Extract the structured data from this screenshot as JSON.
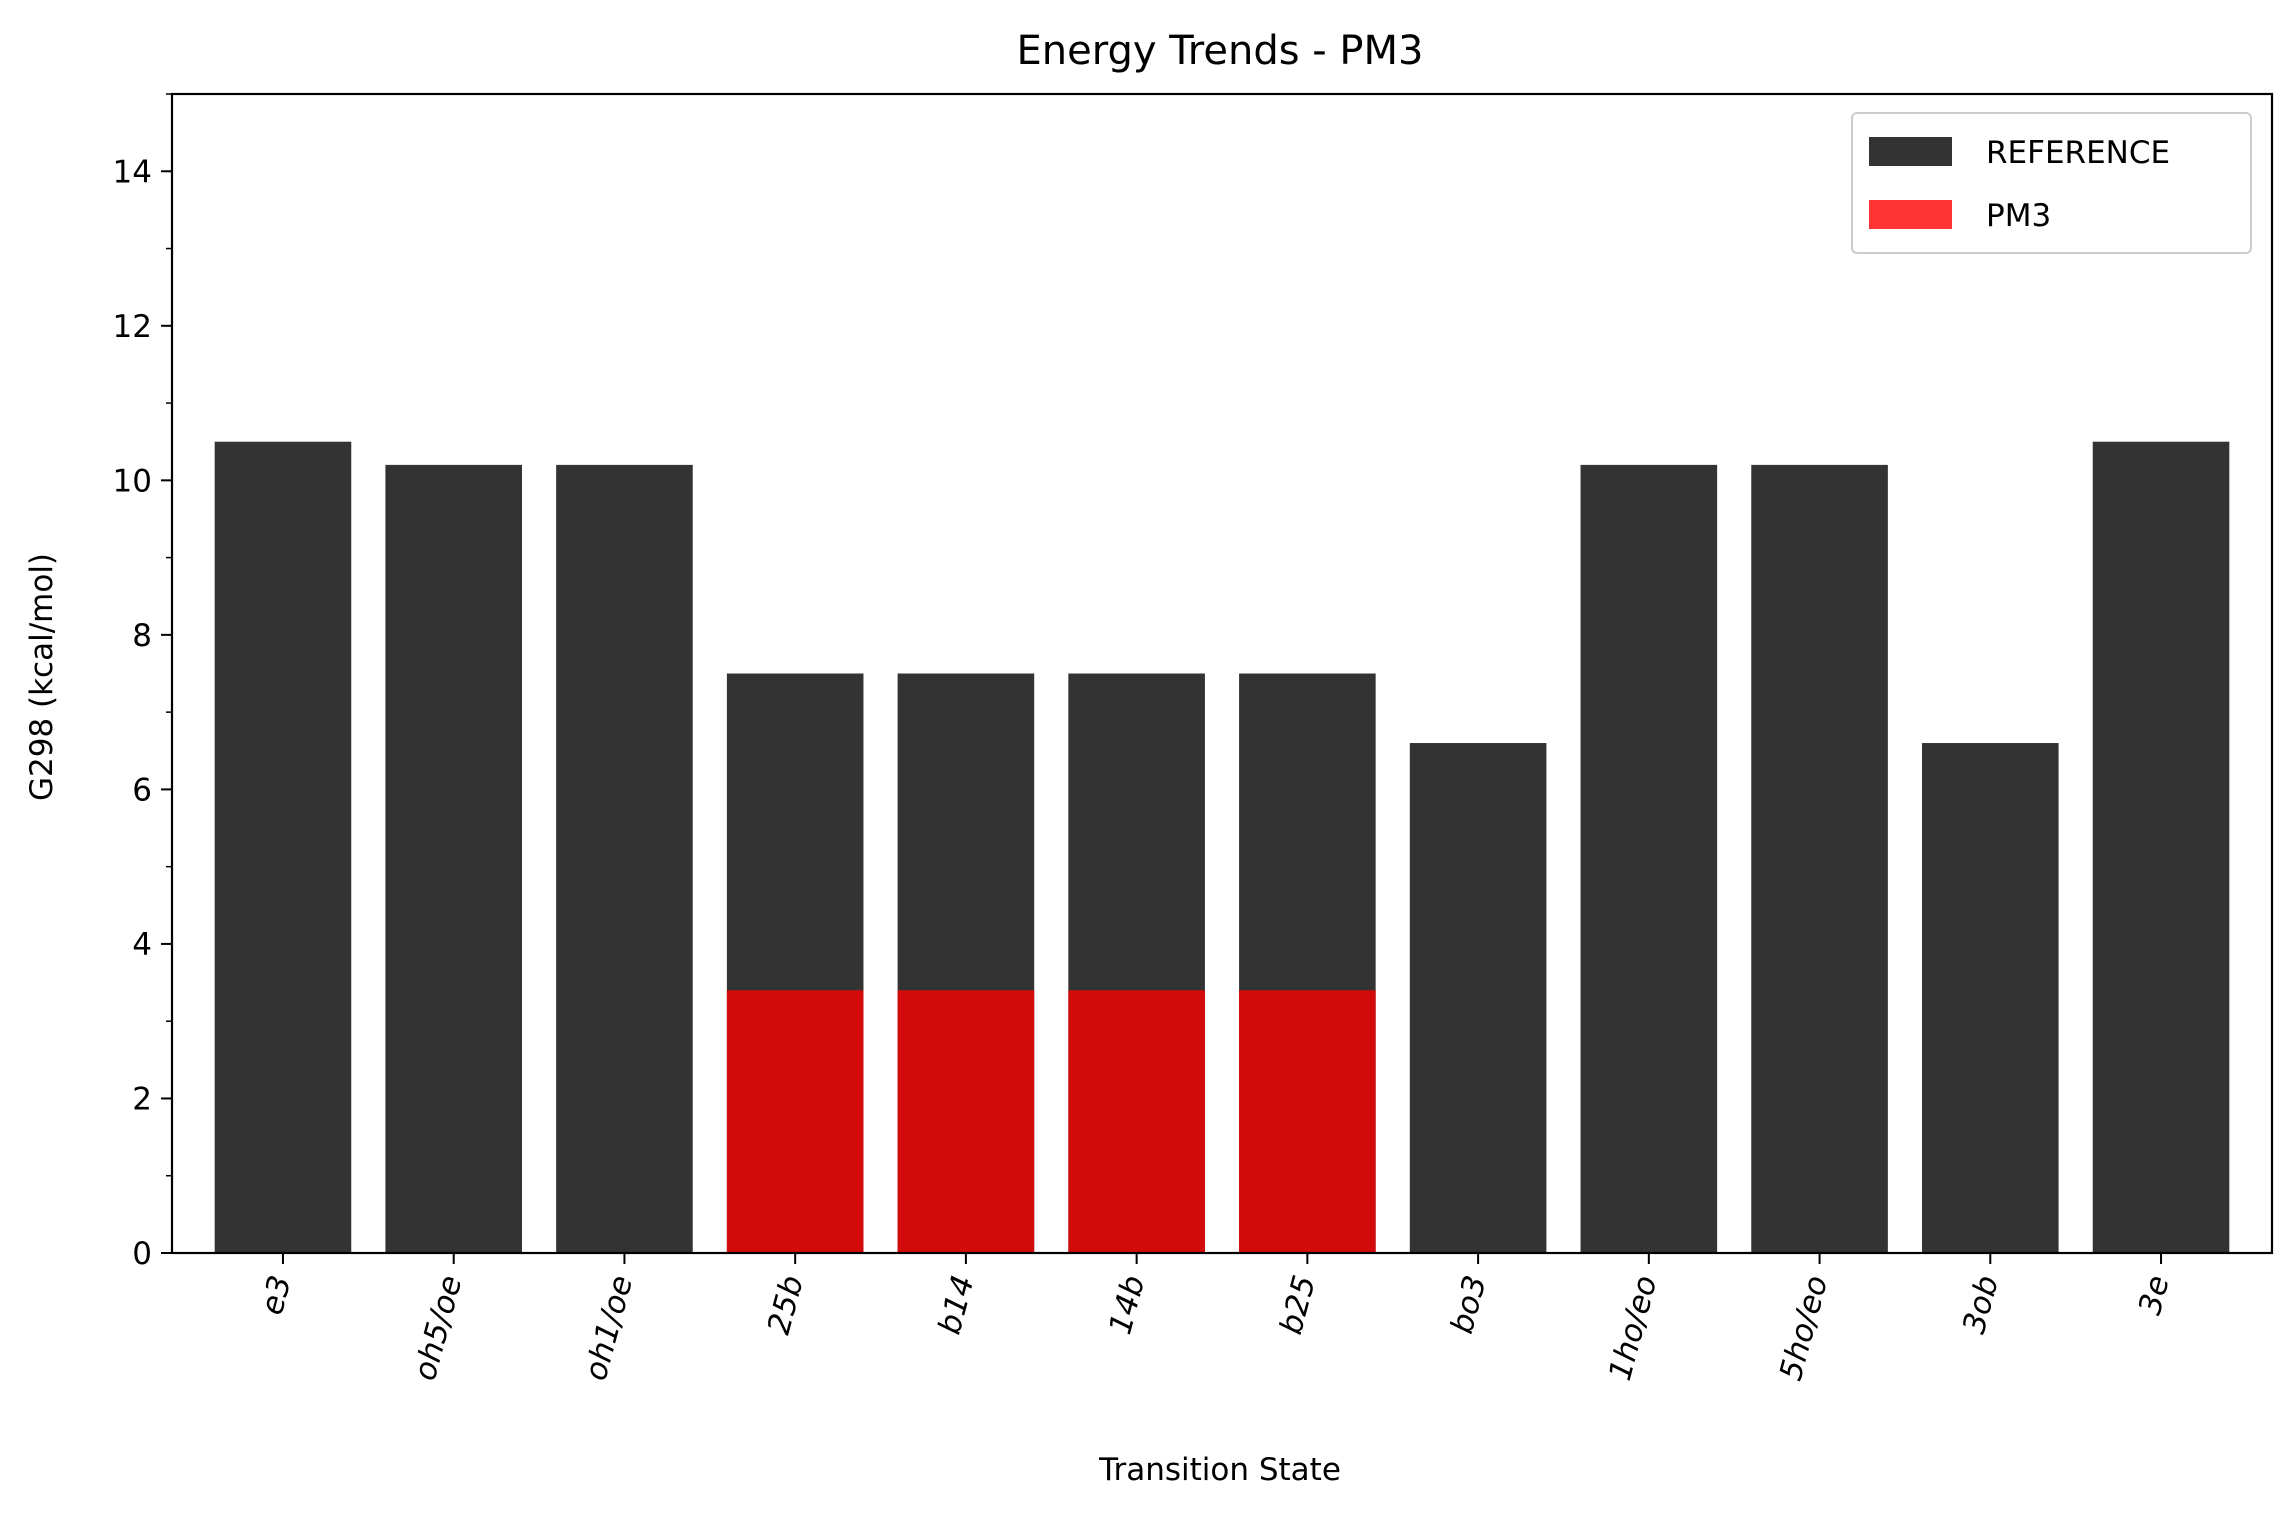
{
  "chart_data": {
    "type": "bar",
    "title": "Energy Trends - PM3",
    "xlabel": "Transition State",
    "ylabel": "G298 (kcal/mol)",
    "ylim": [
      0,
      15
    ],
    "yticks": [
      0,
      2,
      4,
      6,
      8,
      10,
      12,
      14
    ],
    "grid": false,
    "legend_position": "top-right",
    "categories": [
      "e3",
      "oh5/oe",
      "oh1/oe",
      "25b",
      "b14",
      "14b",
      "b25",
      "bo3",
      "1ho/eo",
      "5ho/eo",
      "3ob",
      "3e"
    ],
    "series": [
      {
        "name": "REFERENCE",
        "color": "#333333",
        "values": [
          10.5,
          10.2,
          10.2,
          7.5,
          7.5,
          7.5,
          7.5,
          6.6,
          10.2,
          10.2,
          6.6,
          10.5
        ]
      },
      {
        "name": "PM3",
        "color": "#d40b0b",
        "legend_color": "#ff3333",
        "values": [
          null,
          null,
          null,
          3.4,
          3.4,
          3.4,
          3.4,
          null,
          null,
          null,
          null,
          null
        ]
      }
    ]
  }
}
